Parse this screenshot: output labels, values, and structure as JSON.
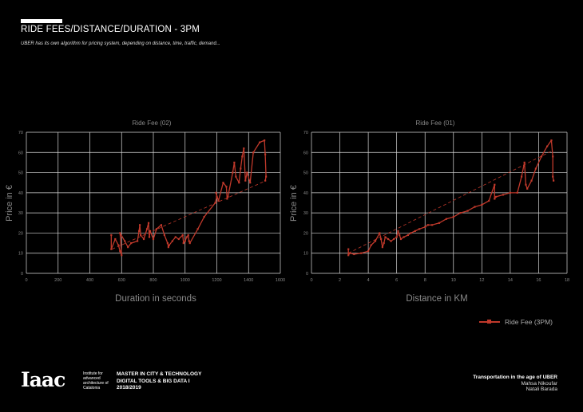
{
  "header": {
    "title": "RIDE FEES/DISTANCE/DURATION - 3PM",
    "subtitle": "UBER has its own algorithm for pricing system, depending on distance, time, traffic, demand..."
  },
  "colors": {
    "series": "#c0392b",
    "trend": "#c0392b",
    "grid": "#d8d8d8",
    "background": "#000000"
  },
  "chart_data": [
    {
      "type": "line",
      "title": "Ride Fee (02)",
      "xlabel": "Duration in seconds",
      "ylabel": "Price in €",
      "xlim": [
        0,
        1600
      ],
      "ylim": [
        0,
        70
      ],
      "xticks": [
        0,
        200,
        400,
        600,
        800,
        1000,
        1200,
        1400,
        1600
      ],
      "yticks": [
        0,
        10,
        20,
        30,
        40,
        50,
        60,
        70
      ],
      "grid": true,
      "trendline": {
        "style": "dashed",
        "from": [
          540,
          12
        ],
        "to": [
          1510,
          46
        ]
      },
      "series": [
        {
          "x": [
            535,
            535,
            560,
            580,
            590,
            600,
            590,
            620,
            640,
            660,
            700,
            710,
            715,
            720,
            740,
            760,
            770,
            775,
            780,
            800,
            820,
            850,
            870,
            890,
            895,
            900,
            920,
            940,
            960,
            985,
            990,
            1000,
            1010,
            1020,
            1025,
            1030,
            1080,
            1120,
            1190,
            1200,
            1195,
            1210,
            1240,
            1260,
            1265,
            1270,
            1300,
            1310,
            1320,
            1340,
            1350,
            1360,
            1370,
            1380,
            1390,
            1410,
            1430,
            1470,
            1500,
            1505,
            1510,
            1505
          ],
          "y": [
            19,
            12,
            17,
            14,
            11,
            9,
            20,
            16,
            13,
            15,
            16,
            21,
            24,
            19,
            17,
            22,
            25,
            18,
            21,
            17,
            22,
            24,
            19,
            15,
            13,
            14,
            16,
            18,
            17,
            19,
            15,
            16,
            18,
            19,
            16,
            15,
            22,
            28,
            35,
            38,
            40,
            36,
            45,
            43,
            37,
            38,
            50,
            55,
            48,
            45,
            52,
            58,
            62,
            46,
            50,
            45,
            60,
            65,
            66,
            59,
            48,
            46
          ]
        }
      ]
    },
    {
      "type": "line",
      "title": "Ride Fee (01)",
      "xlabel": "Distance in KM",
      "ylabel": "Price in €",
      "xlim": [
        0,
        18
      ],
      "ylim": [
        0,
        70
      ],
      "xticks": [
        0,
        2,
        4,
        6,
        8,
        10,
        12,
        14,
        16,
        18
      ],
      "yticks": [
        0,
        10,
        20,
        30,
        40,
        50,
        60,
        70
      ],
      "grid": true,
      "trendline": {
        "style": "dashed",
        "from": [
          2.6,
          10
        ],
        "to": [
          17,
          61
        ]
      },
      "series": [
        {
          "x": [
            2.6,
            2.6,
            2.7,
            3.0,
            3.5,
            4.0,
            4.2,
            4.5,
            4.8,
            4.9,
            5.0,
            5.1,
            5.2,
            5.4,
            5.6,
            5.8,
            6.0,
            6.1,
            6.2,
            6.3,
            6.5,
            6.8,
            7.0,
            7.3,
            7.6,
            8.0,
            8.2,
            8.5,
            9.0,
            9.5,
            10.0,
            10.5,
            11.0,
            11.5,
            12.0,
            12.5,
            12.9,
            12.9,
            13.0,
            13.5,
            14.0,
            14.5,
            14.8,
            15.0,
            15.1,
            15.2,
            15.5,
            15.8,
            16.2,
            16.6,
            16.9,
            17.0,
            17.0,
            17.05
          ],
          "y": [
            12,
            9,
            10,
            9.5,
            10,
            11,
            14,
            16,
            20,
            17,
            13,
            15,
            18,
            17,
            16,
            17,
            18,
            21,
            19,
            17,
            18,
            19,
            20,
            21,
            22,
            23,
            24,
            24,
            25,
            27,
            28,
            30,
            31,
            33,
            34,
            36,
            44,
            37,
            38,
            39,
            40,
            40,
            48,
            55,
            44,
            42,
            46,
            52,
            58,
            63,
            66,
            58,
            48,
            46
          ]
        }
      ]
    }
  ],
  "legend": {
    "label": "Ride Fee (3PM)",
    "position": "bottom-right"
  },
  "footer": {
    "logo": "Iaac",
    "institute": "Institute for advanced architecture of Catalonia",
    "program_line1": "MASTER IN CITY & TECHNOLOGY",
    "program_line2": "DIGITAL TOOLS & BIG DATA I",
    "program_year": "2018/2019",
    "credit_title": "Transportation in the age of UBER",
    "credit_author1": "Mahsa Nikoufar",
    "credit_author2": "Natali Barada"
  }
}
